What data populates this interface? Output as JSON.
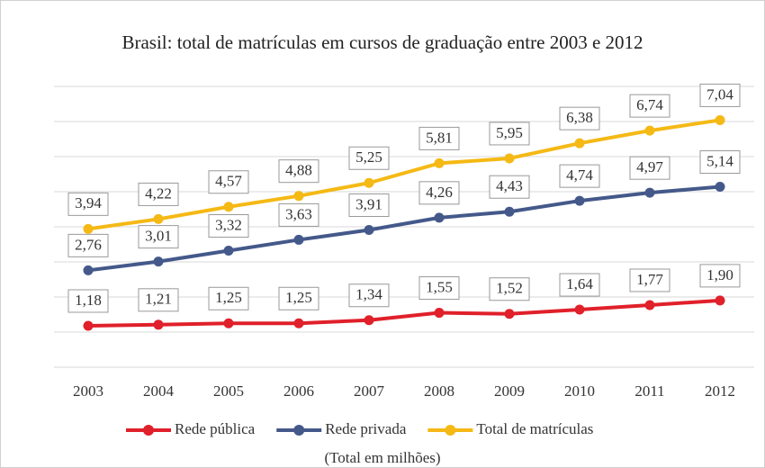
{
  "chart_data": {
    "type": "line",
    "title": "Brasil: total de matrículas em cursos de graduação entre 2003 e 2012",
    "note": "(Total em milhões)",
    "categories": [
      "2003",
      "2004",
      "2005",
      "2006",
      "2007",
      "2008",
      "2009",
      "2010",
      "2011",
      "2012"
    ],
    "series": [
      {
        "name": "Rede pública",
        "color": "#e0202a",
        "values": [
          1.18,
          1.21,
          1.25,
          1.25,
          1.34,
          1.55,
          1.52,
          1.64,
          1.77,
          1.9
        ],
        "value_labels": [
          "1,18",
          "1,21",
          "1,25",
          "1,25",
          "1,34",
          "1,55",
          "1,52",
          "1,64",
          "1,77",
          "1,90"
        ]
      },
      {
        "name": "Rede privada",
        "color": "#44598a",
        "values": [
          2.76,
          3.01,
          3.32,
          3.63,
          3.91,
          4.26,
          4.43,
          4.74,
          4.97,
          5.14
        ],
        "value_labels": [
          "2,76",
          "3,01",
          "3,32",
          "3,63",
          "3,91",
          "4,26",
          "4,43",
          "4,74",
          "4,97",
          "5,14"
        ]
      },
      {
        "name": "Total de matrículas",
        "color": "#f5b915",
        "values": [
          3.94,
          4.22,
          4.57,
          4.88,
          5.25,
          5.81,
          5.95,
          6.38,
          6.74,
          7.04
        ],
        "value_labels": [
          "3,94",
          "4,22",
          "4,57",
          "4,88",
          "5,25",
          "5,81",
          "5,95",
          "6,38",
          "6,74",
          "7,04"
        ]
      }
    ],
    "ylim": [
      0,
      8
    ],
    "yticks": [
      0,
      1,
      2,
      3,
      4,
      5,
      6,
      7,
      8
    ],
    "grid": true,
    "legend": "bottom"
  }
}
